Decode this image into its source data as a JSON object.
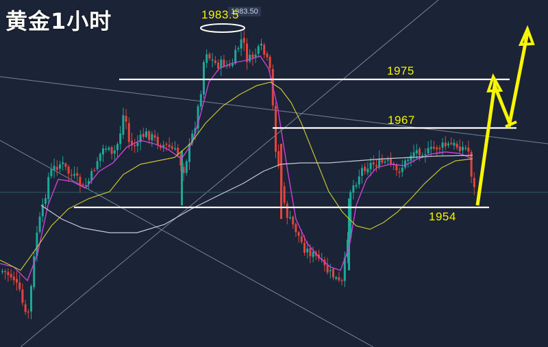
{
  "header": {
    "title": "黄金1小时"
  },
  "price_tag": "1983.50",
  "peak_label": "1983.5",
  "levels": {
    "l1975": "1975",
    "l1967": "1967",
    "l1954": "1954"
  },
  "colors": {
    "background": "#1b2336",
    "bull": "#1ea89a",
    "bear": "#e2453c",
    "ma_fast": "#d13fd6",
    "ma_mid": "#c9c431",
    "ma_slow": "#c8ccd8",
    "level_line": "#ffffff",
    "label": "#f7f500",
    "forecast_arrow": "#f7f500"
  },
  "chart_data": {
    "type": "candlestick",
    "symbol": "gold",
    "timeframe": "1 hour",
    "levels": [
      1975,
      1967,
      1954
    ],
    "peak": 1983.5,
    "close_readout": 1983.5,
    "forecast": "up-arrow with pullback toward 1967 then higher",
    "moving_averages": [
      "fast (magenta)",
      "mid (yellow)",
      "slow (white)"
    ]
  }
}
